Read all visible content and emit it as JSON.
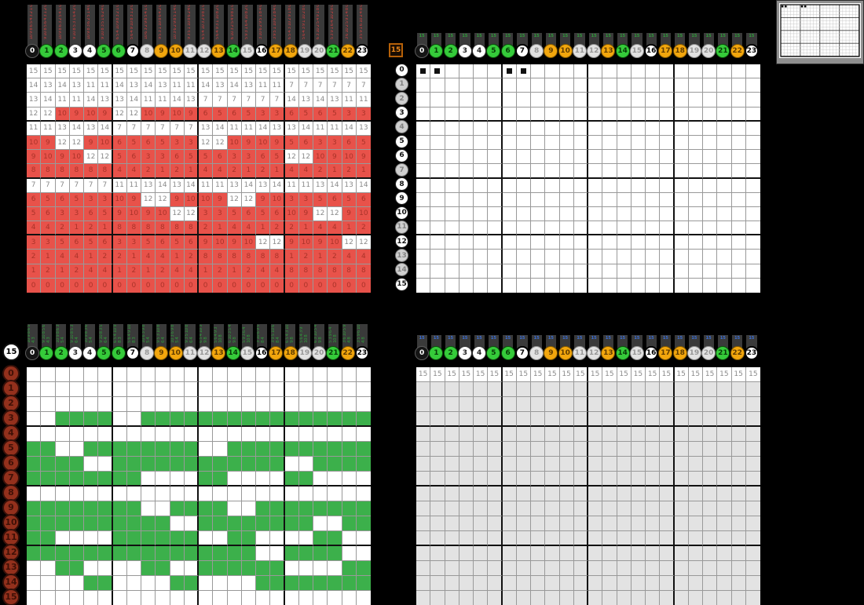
{
  "colors": {
    "background": "#000000",
    "red_cell": "#e8524a",
    "red_cell_text": "#aa3329",
    "green_cell": "#3cb04b",
    "gray_cell": "#e3e3e3",
    "white_cell_text": "#8a8a8a",
    "clue_red": "#cf4040",
    "clue_green": "#2f9e3a",
    "clue_blue": "#3a6fd8",
    "circle_green": "#35cb3a",
    "circle_orange": "#f2a60d",
    "rust_circle": "#93301c"
  },
  "column_headers": {
    "labels": [
      "0",
      "1",
      "2",
      "3",
      "4",
      "5",
      "6",
      "7",
      "8",
      "9",
      "10",
      "11",
      "12",
      "13",
      "14",
      "15",
      "16",
      "17",
      "18",
      "19",
      "20",
      "21",
      "22",
      "23"
    ],
    "styles": [
      "black",
      "green",
      "green",
      "white",
      "white",
      "green",
      "green",
      "bold",
      "dim",
      "orange",
      "orange",
      "dim",
      "dim",
      "orange",
      "green",
      "dim",
      "bold",
      "orange",
      "orange",
      "dim",
      "dim",
      "green",
      "orange",
      "bold"
    ]
  },
  "row_headers": {
    "labels": [
      "0",
      "1",
      "2",
      "3",
      "4",
      "5",
      "6",
      "7",
      "8",
      "9",
      "10",
      "11",
      "12",
      "13",
      "14",
      "15"
    ]
  },
  "cell_values": [
    [
      15,
      15,
      15,
      15,
      15,
      15,
      15,
      15,
      15,
      15,
      15,
      15,
      15,
      15,
      15,
      15,
      15,
      15,
      15,
      15,
      15,
      15,
      15,
      15
    ],
    [
      14,
      13,
      14,
      13,
      11,
      11,
      14,
      13,
      14,
      13,
      11,
      11,
      14,
      13,
      14,
      13,
      11,
      11,
      7,
      7,
      7,
      7,
      7,
      7
    ],
    [
      13,
      14,
      11,
      11,
      14,
      13,
      13,
      14,
      11,
      11,
      14,
      13,
      7,
      7,
      7,
      7,
      7,
      7,
      14,
      13,
      14,
      13,
      11,
      11
    ],
    [
      12,
      12,
      10,
      9,
      10,
      9,
      12,
      12,
      10,
      9,
      10,
      9,
      6,
      5,
      6,
      5,
      3,
      3,
      6,
      5,
      6,
      5,
      3,
      3
    ],
    [
      11,
      11,
      13,
      14,
      13,
      14,
      7,
      7,
      7,
      7,
      7,
      7,
      13,
      14,
      11,
      11,
      14,
      13,
      13,
      14,
      11,
      11,
      14,
      13
    ],
    [
      10,
      9,
      12,
      12,
      9,
      10,
      6,
      5,
      6,
      5,
      3,
      3,
      12,
      12,
      10,
      9,
      10,
      9,
      5,
      6,
      3,
      3,
      6,
      5
    ],
    [
      9,
      10,
      9,
      10,
      12,
      12,
      5,
      6,
      3,
      3,
      6,
      5,
      5,
      6,
      3,
      3,
      6,
      5,
      12,
      12,
      10,
      9,
      10,
      9
    ],
    [
      8,
      8,
      8,
      8,
      8,
      8,
      4,
      4,
      2,
      1,
      2,
      1,
      4,
      4,
      2,
      1,
      2,
      1,
      4,
      4,
      2,
      1,
      2,
      1
    ],
    [
      7,
      7,
      7,
      7,
      7,
      7,
      11,
      11,
      13,
      14,
      13,
      14,
      11,
      11,
      13,
      14,
      13,
      14,
      11,
      11,
      13,
      14,
      13,
      14
    ],
    [
      6,
      5,
      6,
      5,
      3,
      3,
      10,
      9,
      12,
      12,
      9,
      10,
      10,
      9,
      12,
      12,
      9,
      10,
      3,
      3,
      5,
      6,
      5,
      6
    ],
    [
      5,
      6,
      3,
      3,
      6,
      5,
      9,
      10,
      9,
      10,
      12,
      12,
      3,
      3,
      5,
      6,
      5,
      6,
      10,
      9,
      12,
      12,
      9,
      10
    ],
    [
      4,
      4,
      2,
      1,
      2,
      1,
      8,
      8,
      8,
      8,
      8,
      8,
      2,
      1,
      4,
      4,
      1,
      2,
      2,
      1,
      4,
      4,
      1,
      2
    ],
    [
      3,
      3,
      5,
      6,
      5,
      6,
      3,
      3,
      5,
      6,
      5,
      6,
      9,
      10,
      9,
      10,
      12,
      12,
      9,
      10,
      9,
      10,
      12,
      12
    ],
    [
      2,
      1,
      4,
      4,
      1,
      2,
      2,
      1,
      4,
      4,
      1,
      2,
      8,
      8,
      8,
      8,
      8,
      8,
      1,
      2,
      1,
      2,
      4,
      4
    ],
    [
      1,
      2,
      1,
      2,
      4,
      4,
      1,
      2,
      1,
      2,
      4,
      4,
      1,
      2,
      1,
      2,
      4,
      4,
      8,
      8,
      8,
      8,
      8,
      8
    ],
    [
      0,
      0,
      0,
      0,
      0,
      0,
      0,
      0,
      0,
      0,
      0,
      0,
      0,
      0,
      0,
      0,
      0,
      0,
      0,
      0,
      0,
      0,
      0,
      0
    ]
  ],
  "grids": {
    "top_left": {
      "mode": "numbers",
      "clue_mode": "values",
      "clue_filter": "red",
      "clue_color": "#cf4040"
    },
    "top_right": {
      "mode": "blank",
      "badge": {
        "text": "15",
        "style": "badge-orange"
      },
      "clue_mode": "glyph",
      "clue_glyph": "15",
      "clue_color": "#2f9e3a",
      "black_squares": [
        [
          0,
          0
        ],
        [
          0,
          1
        ],
        [
          0,
          6
        ],
        [
          0,
          7
        ]
      ],
      "row_circles": "white",
      "dim_rows": [
        1,
        2,
        4,
        7,
        11,
        13,
        14
      ]
    },
    "bottom_left": {
      "mode": "pattern",
      "badge": {
        "text": "15",
        "style": "badge-white"
      },
      "clue_mode": "values",
      "clue_filter": "green",
      "clue_color": "#2f9e3a",
      "row_circles": "rust"
    },
    "bottom_right": {
      "mode": "grayfill",
      "fill_value": "15",
      "clue_mode": "glyph",
      "clue_glyph": "15",
      "clue_color": "#3a6fd8"
    }
  },
  "minimap": {
    "cols": 24,
    "rows": 16,
    "block_w": 6,
    "block_h": 4,
    "squares": [
      [
        0,
        0
      ],
      [
        0,
        1
      ],
      [
        0,
        6
      ],
      [
        0,
        7
      ]
    ]
  }
}
